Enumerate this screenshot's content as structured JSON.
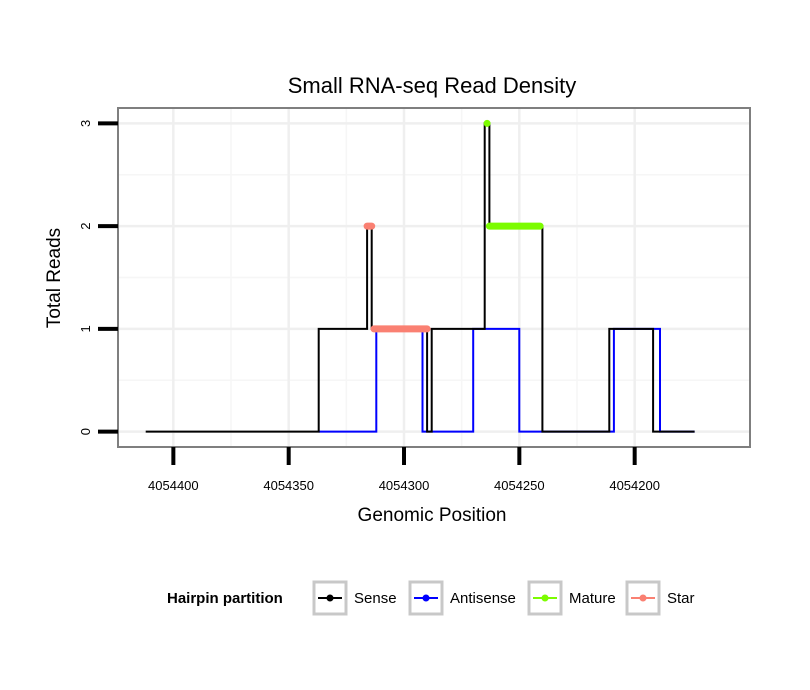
{
  "chart_data": {
    "type": "line",
    "title": "Small RNA-seq Read Density",
    "xlabel": "Genomic Position",
    "ylabel": "Total Reads",
    "xlim": [
      4054424,
      4054150
    ],
    "ylim": [
      -0.15,
      3.15
    ],
    "x_reversed": true,
    "x_ticks": [
      4054400,
      4054350,
      4054300,
      4054250,
      4054200
    ],
    "x_tick_labels": [
      "4054400",
      "4054350",
      "4054300",
      "4054250",
      "4054200"
    ],
    "y_ticks": [
      0,
      1,
      2,
      3
    ],
    "y_tick_labels": [
      "0",
      "1",
      "2",
      "3"
    ],
    "grid": true,
    "legend_position": "bottom",
    "legend_title": "Hairpin partition",
    "series": [
      {
        "name": "Sense",
        "color": "#000000",
        "marker": "line",
        "x": [
          4054412,
          4054337,
          4054337,
          4054316,
          4054316,
          4054314,
          4054314,
          4054290,
          4054290,
          4054288,
          4054288,
          4054265,
          4054265,
          4054263,
          4054263,
          4054240,
          4054240,
          4054211,
          4054211,
          4054192,
          4054192,
          4054174
        ],
        "values": [
          0,
          0,
          1,
          1,
          2,
          2,
          1,
          1,
          0,
          0,
          1,
          1,
          3,
          3,
          2,
          2,
          0,
          0,
          1,
          1,
          0,
          0
        ]
      },
      {
        "name": "Antisense",
        "color": "#0000ff",
        "marker": "line",
        "x": [
          4054337,
          4054312,
          4054312,
          4054292,
          4054292,
          4054289,
          4054289,
          4054270,
          4054270,
          4054250,
          4054250,
          4054211,
          4054211,
          4054209,
          4054209,
          4054189,
          4054189,
          4054174
        ],
        "values": [
          0,
          0,
          1,
          1,
          0,
          0,
          0,
          0,
          1,
          1,
          0,
          0,
          0,
          0,
          1,
          1,
          0,
          0
        ]
      },
      {
        "name": "Mature",
        "color": "#7cfc00",
        "marker": "thick",
        "x": [
          4054264,
          4054264,
          4054263,
          4054263,
          4054241
        ],
        "values": [
          3,
          3,
          null,
          2,
          2
        ]
      },
      {
        "name": "Star",
        "color": "#fa8072",
        "marker": "thick",
        "x": [
          4054316,
          4054314,
          4054314,
          4054313,
          4054290
        ],
        "values": [
          2,
          2,
          null,
          1,
          1
        ]
      }
    ]
  }
}
